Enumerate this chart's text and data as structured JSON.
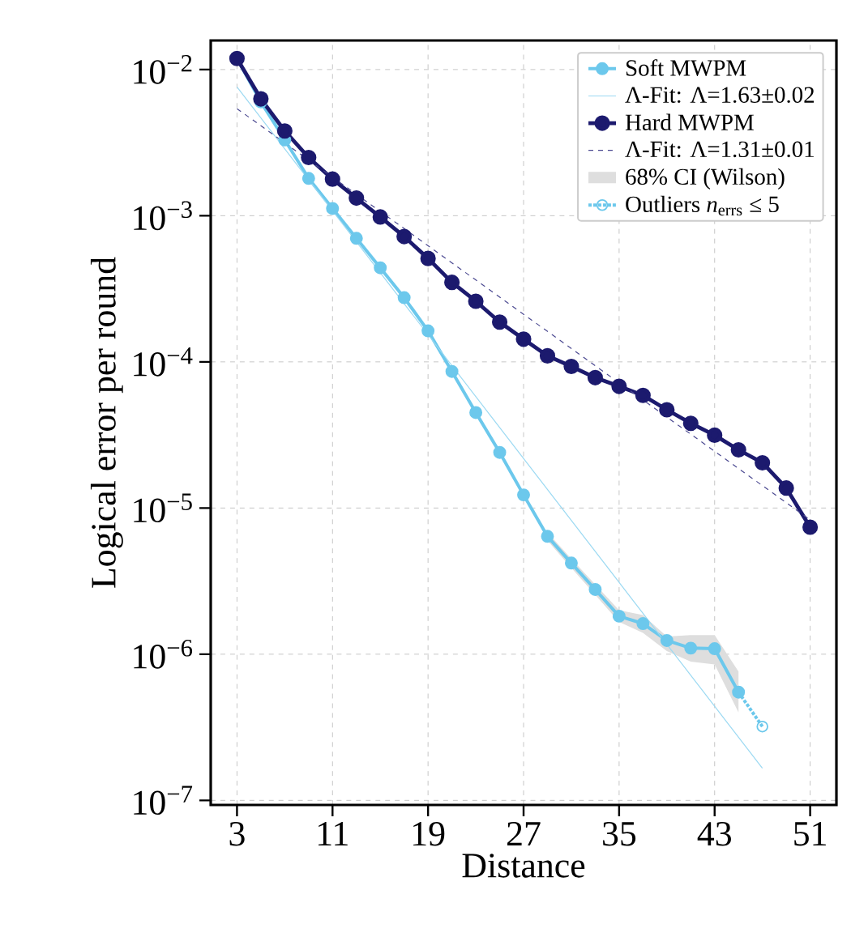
{
  "chart_data": {
    "type": "line",
    "xlabel": "Distance",
    "ylabel": "Logical error per round",
    "log": "y",
    "grid": true,
    "legend": "top right",
    "marker": "circle",
    "x": [
      3,
      5,
      7,
      9,
      11,
      13,
      15,
      17,
      19,
      21,
      23,
      25,
      27,
      29,
      31,
      33,
      35,
      37,
      39,
      41,
      43,
      45,
      47,
      49,
      51
    ],
    "xlim": [
      0.8,
      53.2
    ],
    "xticks": [
      3,
      11,
      19,
      27,
      35,
      43,
      51
    ],
    "ylim": [
      9.3e-08,
      0.0158
    ],
    "yticks": [
      {
        "value": 0.01,
        "label": "10$^{−2}$"
      },
      {
        "value": 0.001,
        "label": "10$^{−3}$"
      },
      {
        "value": 0.0001,
        "label": "10$^{−4}$"
      },
      {
        "value": 1e-05,
        "label": "10$^{−5}$"
      },
      {
        "value": 1e-06,
        "label": "10$^{−6}$"
      },
      {
        "value": 1e-07,
        "label": "10$^{−7}$"
      }
    ],
    "series": [
      {
        "name": "Soft MWPM",
        "color": "#6cc8ec",
        "line_style": "solid",
        "values": [
          0.0119,
          0.006,
          0.0033,
          0.0018,
          0.00112,
          0.0007,
          0.00044,
          0.000275,
          0.000163,
          8.6e-05,
          4.5e-05,
          2.4e-05,
          1.23e-05,
          6.4e-06,
          4.2e-06,
          2.77e-06,
          1.82e-06,
          1.62e-06,
          1.24e-06,
          1.1e-06,
          1.09e-06,
          5.5e-07,
          null,
          null,
          null
        ],
        "lower": [
          null,
          null,
          null,
          null,
          null,
          null,
          null,
          null,
          null,
          null,
          null,
          null,
          null,
          6e-06,
          3.9e-06,
          2.55e-06,
          1.66e-06,
          1.4e-06,
          1.05e-06,
          8.9e-07,
          8.5e-07,
          4e-07,
          null,
          null,
          null
        ],
        "upper": [
          null,
          null,
          null,
          null,
          null,
          null,
          null,
          null,
          null,
          null,
          null,
          null,
          null,
          6.8e-06,
          4.5e-06,
          3e-06,
          2e-06,
          1.85e-06,
          1.32e-06,
          1.35e-06,
          1.35e-06,
          7.6e-07,
          null,
          null,
          null
        ]
      },
      {
        "name": "Λ-Fit: Λ=1.63±0.02",
        "type": "line",
        "color": "#9bd9f2",
        "line_style": "solid",
        "marker": "none",
        "x": [
          3,
          47
        ],
        "values": [
          0.0076,
          1.66e-07
        ]
      },
      {
        "name": "Hard MWPM",
        "color": "#1c1a6e",
        "line_style": "solid",
        "values": [
          0.0119,
          0.0063,
          0.0038,
          0.0025,
          0.00178,
          0.00132,
          0.00098,
          0.00072,
          0.00051,
          0.00035,
          0.00026,
          0.000187,
          0.000143,
          0.00011,
          9.3e-05,
          7.8e-05,
          6.8e-05,
          5.9e-05,
          4.7e-05,
          3.8e-05,
          3.15e-05,
          2.5e-05,
          2.04e-05,
          1.37e-05,
          7.4e-06
        ]
      },
      {
        "name": "Λ-Fit: Λ=1.31±0.01",
        "type": "line",
        "color": "#4a4890",
        "line_style": "dashed",
        "marker": "none",
        "x": [
          3,
          51
        ],
        "values": [
          0.0054,
          8.3e-06
        ]
      },
      {
        "name": "Outliers *n*$_{errs}$ ≤ 5",
        "color": "#6cc8ec",
        "line_style": "dotted",
        "x": [
          45,
          47
        ],
        "values": [
          5.5e-07,
          3.2e-07
        ]
      }
    ],
    "annotations": [
      "68% CI (Wilson)"
    ]
  }
}
